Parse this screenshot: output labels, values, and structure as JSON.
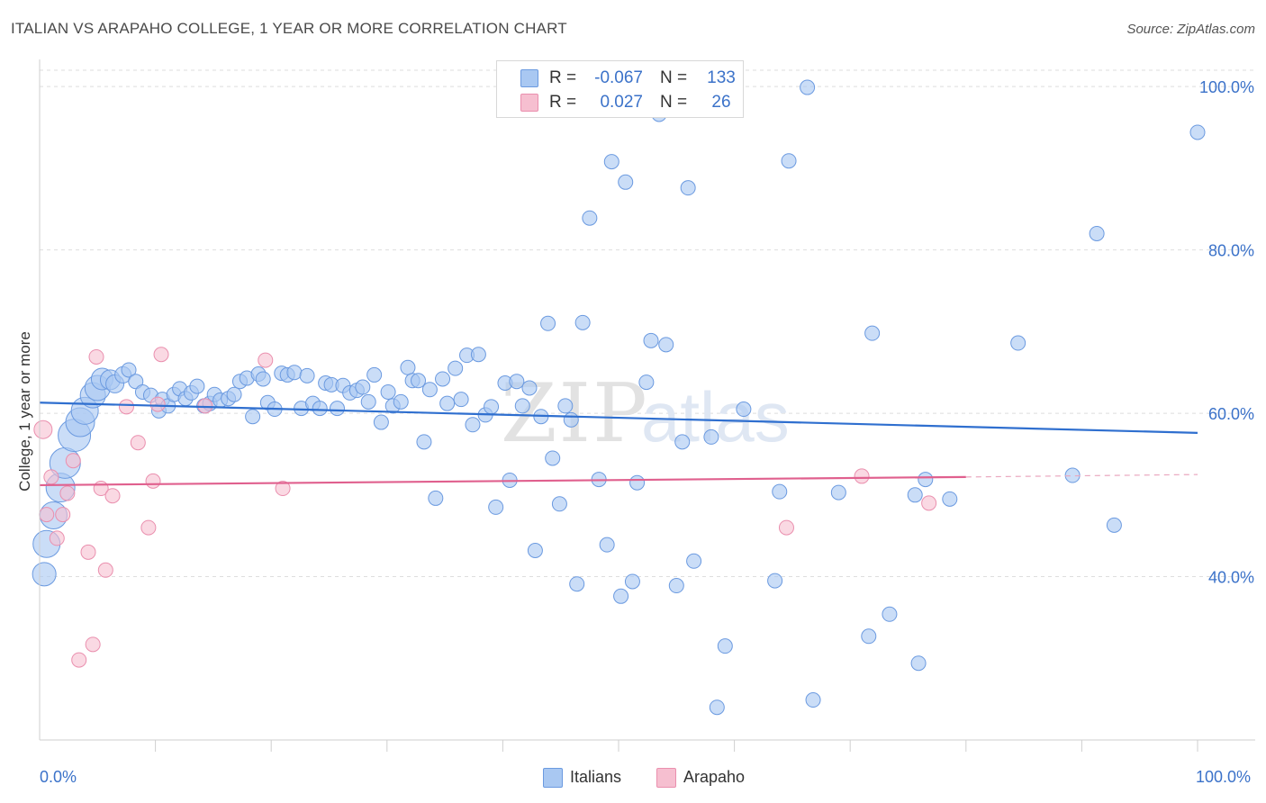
{
  "title": "ITALIAN VS ARAPAHO COLLEGE, 1 YEAR OR MORE CORRELATION CHART",
  "source": "Source: ZipAtlas.com",
  "watermark": {
    "zip": "ZIP",
    "atlas": "atlas"
  },
  "legend_top": {
    "italians": {
      "r_label": "R =",
      "r_value": "-0.067",
      "n_label": "N =",
      "n_value": "133"
    },
    "arapaho": {
      "r_label": "R =",
      "r_value": "0.027",
      "n_label": "N =",
      "n_value": "26"
    }
  },
  "legend_bottom": {
    "italians": "Italians",
    "arapaho": "Arapaho"
  },
  "x_axis": {
    "min_label": "0.0%",
    "max_label": "100.0%"
  },
  "colors": {
    "italians_fill": "#a9c8f2",
    "italians_stroke": "#6b9ae0",
    "italians_line": "#2f6fcf",
    "arapaho_fill": "#f6bfd0",
    "arapaho_stroke": "#ea8fae",
    "arapaho_line": "#e0608e",
    "tick_label": "#3b72c9"
  },
  "chart_data": {
    "type": "scatter",
    "title": "ITALIAN VS ARAPAHO COLLEGE, 1 YEAR OR MORE CORRELATION CHART",
    "xlabel": "",
    "ylabel": "College, 1 year or more",
    "xlim": [
      0,
      100
    ],
    "ylim": [
      20,
      102
    ],
    "ytick_values": [
      40,
      60,
      80,
      100
    ],
    "ytick_labels": [
      "40.0%",
      "60.0%",
      "80.0%",
      "100.0%"
    ],
    "grid": true,
    "legend_placement": "top-center",
    "series": [
      {
        "name": "Italians",
        "r": -0.067,
        "n": 133,
        "trend": {
          "x": [
            0,
            100
          ],
          "y": [
            61.3,
            57.6
          ]
        },
        "points": [
          [
            0.4,
            40.3,
            13
          ],
          [
            0.6,
            44.0,
            15
          ],
          [
            1.2,
            47.5,
            15
          ],
          [
            1.8,
            50.9,
            16
          ],
          [
            2.2,
            53.9,
            17
          ],
          [
            3.0,
            57.3,
            18
          ],
          [
            3.5,
            58.9,
            16
          ],
          [
            3.9,
            60.3,
            15
          ],
          [
            4.6,
            62.2,
            14
          ],
          [
            5.0,
            63.1,
            14
          ],
          [
            5.4,
            64.2,
            12
          ],
          [
            6.1,
            64.1,
            11
          ],
          [
            6.5,
            63.6,
            10
          ],
          [
            7.2,
            64.7,
            9
          ],
          [
            7.7,
            65.3,
            8
          ],
          [
            8.3,
            63.9,
            8
          ],
          [
            8.9,
            62.6,
            8
          ],
          [
            9.6,
            62.2,
            8
          ],
          [
            10.3,
            60.3,
            8
          ],
          [
            10.6,
            61.7,
            8
          ],
          [
            11.1,
            60.9,
            8
          ],
          [
            11.6,
            62.3,
            8
          ],
          [
            12.1,
            63.0,
            8
          ],
          [
            12.6,
            61.8,
            8
          ],
          [
            13.1,
            62.5,
            8
          ],
          [
            13.6,
            63.3,
            8
          ],
          [
            14.2,
            60.9,
            8
          ],
          [
            14.7,
            61.2,
            8
          ],
          [
            15.1,
            62.3,
            8
          ],
          [
            15.6,
            61.6,
            8
          ],
          [
            16.3,
            61.8,
            8
          ],
          [
            16.8,
            62.3,
            8
          ],
          [
            17.3,
            63.9,
            8
          ],
          [
            17.9,
            64.3,
            8
          ],
          [
            18.4,
            59.6,
            8
          ],
          [
            18.9,
            64.8,
            8
          ],
          [
            19.3,
            64.2,
            8
          ],
          [
            19.7,
            61.3,
            8
          ],
          [
            20.3,
            60.5,
            8
          ],
          [
            20.9,
            64.9,
            8
          ],
          [
            21.4,
            64.7,
            8
          ],
          [
            22.0,
            65.0,
            8
          ],
          [
            22.6,
            60.6,
            8
          ],
          [
            23.1,
            64.6,
            8
          ],
          [
            23.6,
            61.2,
            8
          ],
          [
            24.2,
            60.6,
            8
          ],
          [
            24.7,
            63.7,
            8
          ],
          [
            25.2,
            63.5,
            8
          ],
          [
            25.7,
            60.6,
            8
          ],
          [
            26.2,
            63.4,
            8
          ],
          [
            26.8,
            62.5,
            8
          ],
          [
            27.4,
            62.8,
            8
          ],
          [
            27.9,
            63.2,
            8
          ],
          [
            28.4,
            61.4,
            8
          ],
          [
            28.9,
            64.7,
            8
          ],
          [
            29.5,
            58.9,
            8
          ],
          [
            30.1,
            62.6,
            8
          ],
          [
            30.5,
            60.9,
            8
          ],
          [
            31.2,
            61.4,
            8
          ],
          [
            31.8,
            65.6,
            8
          ],
          [
            32.2,
            64.0,
            8
          ],
          [
            32.7,
            64.0,
            8
          ],
          [
            33.2,
            56.5,
            8
          ],
          [
            33.7,
            62.9,
            8
          ],
          [
            34.2,
            49.6,
            8
          ],
          [
            34.8,
            64.2,
            8
          ],
          [
            35.2,
            61.2,
            8
          ],
          [
            35.9,
            65.5,
            8
          ],
          [
            36.4,
            61.7,
            8
          ],
          [
            36.9,
            67.1,
            8
          ],
          [
            37.4,
            58.6,
            8
          ],
          [
            37.9,
            67.2,
            8
          ],
          [
            38.5,
            59.8,
            8
          ],
          [
            39.0,
            60.8,
            8
          ],
          [
            39.4,
            48.5,
            8
          ],
          [
            40.2,
            63.7,
            8
          ],
          [
            40.6,
            51.8,
            8
          ],
          [
            41.2,
            63.9,
            8
          ],
          [
            41.7,
            60.9,
            8
          ],
          [
            42.3,
            63.1,
            8
          ],
          [
            42.8,
            43.2,
            8
          ],
          [
            43.3,
            59.6,
            8
          ],
          [
            43.9,
            71.0,
            8
          ],
          [
            44.3,
            54.5,
            8
          ],
          [
            44.9,
            48.9,
            8
          ],
          [
            45.4,
            60.9,
            8
          ],
          [
            45.9,
            59.2,
            8
          ],
          [
            46.4,
            39.1,
            8
          ],
          [
            46.9,
            71.1,
            8
          ],
          [
            47.5,
            83.9,
            8
          ],
          [
            48.3,
            51.9,
            8
          ],
          [
            49.0,
            43.9,
            8
          ],
          [
            49.4,
            90.8,
            8
          ],
          [
            50.2,
            37.6,
            8
          ],
          [
            50.6,
            88.3,
            8
          ],
          [
            51.2,
            39.4,
            8
          ],
          [
            51.6,
            51.5,
            8
          ],
          [
            52.4,
            63.8,
            8
          ],
          [
            52.8,
            68.9,
            8
          ],
          [
            53.5,
            96.6,
            8
          ],
          [
            54.1,
            68.4,
            8
          ],
          [
            55.0,
            38.9,
            8
          ],
          [
            55.5,
            56.5,
            8
          ],
          [
            56.0,
            87.6,
            8
          ],
          [
            56.5,
            41.9,
            8
          ],
          [
            58.0,
            57.1,
            8
          ],
          [
            58.5,
            24.0,
            8
          ],
          [
            59.2,
            31.5,
            8
          ],
          [
            60.8,
            60.5,
            8
          ],
          [
            63.5,
            39.5,
            8
          ],
          [
            63.9,
            50.4,
            8
          ],
          [
            64.7,
            90.9,
            8
          ],
          [
            66.3,
            99.9,
            8
          ],
          [
            66.8,
            24.9,
            8
          ],
          [
            69.0,
            50.3,
            8
          ],
          [
            71.6,
            32.7,
            8
          ],
          [
            71.9,
            69.8,
            8
          ],
          [
            73.4,
            35.4,
            8
          ],
          [
            75.6,
            50.0,
            8
          ],
          [
            75.9,
            29.4,
            8
          ],
          [
            76.5,
            51.9,
            8
          ],
          [
            78.6,
            49.5,
            8
          ],
          [
            84.5,
            68.6,
            8
          ],
          [
            89.2,
            52.4,
            8
          ],
          [
            91.3,
            82.0,
            8
          ],
          [
            92.8,
            46.3,
            8
          ],
          [
            100.0,
            94.4,
            8
          ]
        ]
      },
      {
        "name": "Arapaho",
        "r": 0.027,
        "n": 26,
        "trend": {
          "x": [
            0,
            80
          ],
          "y": [
            51.2,
            52.2
          ]
        },
        "trend_dashed": {
          "x": [
            80,
            100
          ],
          "y": [
            52.2,
            52.5
          ]
        },
        "points": [
          [
            0.3,
            58.0,
            10
          ],
          [
            0.6,
            47.6,
            8
          ],
          [
            1.0,
            52.2,
            8
          ],
          [
            1.5,
            44.7,
            8
          ],
          [
            2.0,
            47.6,
            8
          ],
          [
            2.4,
            50.2,
            8
          ],
          [
            2.9,
            54.2,
            8
          ],
          [
            3.4,
            29.8,
            8
          ],
          [
            4.2,
            43.0,
            8
          ],
          [
            4.6,
            31.7,
            8
          ],
          [
            4.9,
            66.9,
            8
          ],
          [
            5.3,
            50.8,
            8
          ],
          [
            5.7,
            40.8,
            8
          ],
          [
            6.3,
            49.9,
            8
          ],
          [
            7.5,
            60.8,
            8
          ],
          [
            8.5,
            56.4,
            8
          ],
          [
            9.4,
            46.0,
            8
          ],
          [
            9.8,
            51.7,
            8
          ],
          [
            10.2,
            61.1,
            8
          ],
          [
            10.5,
            67.2,
            8
          ],
          [
            14.3,
            60.9,
            8
          ],
          [
            19.5,
            66.5,
            8
          ],
          [
            21.0,
            50.8,
            8
          ],
          [
            64.5,
            46.0,
            8
          ],
          [
            71.0,
            52.3,
            8
          ],
          [
            76.8,
            49.0,
            8
          ]
        ]
      }
    ]
  }
}
